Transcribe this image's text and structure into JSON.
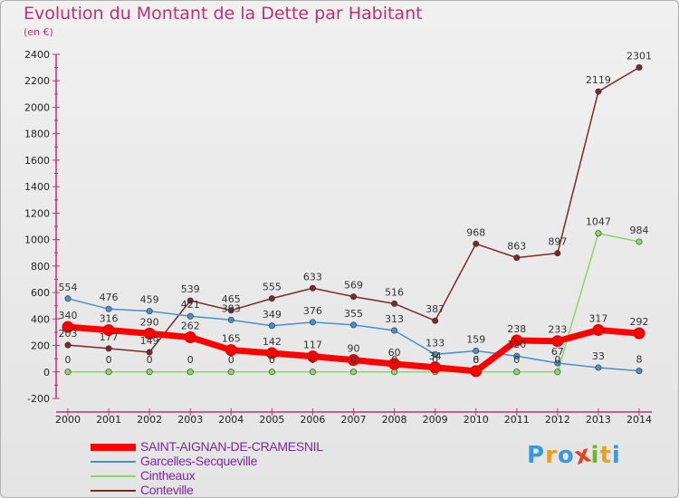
{
  "title": "Evolution du Montant de la Dette par Habitant",
  "subtitle": "(en €)",
  "logo_text": "Proxiti",
  "chart_data": {
    "type": "line",
    "title": "Evolution du Montant de la Dette par Habitant",
    "subtitle": "(en €)",
    "xlabel": "",
    "ylabel": "",
    "x": [
      "2000",
      "2001",
      "2002",
      "2003",
      "2004",
      "2005",
      "2006",
      "2007",
      "2008",
      "2009",
      "2010",
      "2011",
      "2012",
      "2013",
      "2014"
    ],
    "ylim": [
      -200,
      2400
    ],
    "yticks": [
      -200,
      0,
      200,
      400,
      600,
      800,
      1000,
      1200,
      1400,
      1600,
      1800,
      2000,
      2200,
      2400
    ],
    "grid": false,
    "legend_position": "bottom-left",
    "series": [
      {
        "name": "SAINT-AIGNAN-DE-CRAMESNIL",
        "color": "#ff0000",
        "values": [
          340,
          316,
          290,
          262,
          165,
          142,
          117,
          90,
          60,
          34,
          6,
          238,
          233,
          317,
          292
        ]
      },
      {
        "name": "Garcelles-Secqueville",
        "color": "#4a8fc8",
        "values": [
          554,
          476,
          459,
          421,
          393,
          349,
          376,
          355,
          313,
          133,
          159,
          120,
          67,
          33,
          8
        ]
      },
      {
        "name": "Cintheaux",
        "color": "#8ed46a",
        "values": [
          0,
          0,
          0,
          0,
          0,
          0,
          0,
          0,
          0,
          0,
          0,
          0,
          0,
          1047,
          984
        ]
      },
      {
        "name": "Conteville",
        "color": "#7a2a2a",
        "values": [
          203,
          177,
          149,
          539,
          465,
          555,
          633,
          569,
          516,
          387,
          968,
          863,
          897,
          2119,
          2301
        ]
      }
    ]
  }
}
